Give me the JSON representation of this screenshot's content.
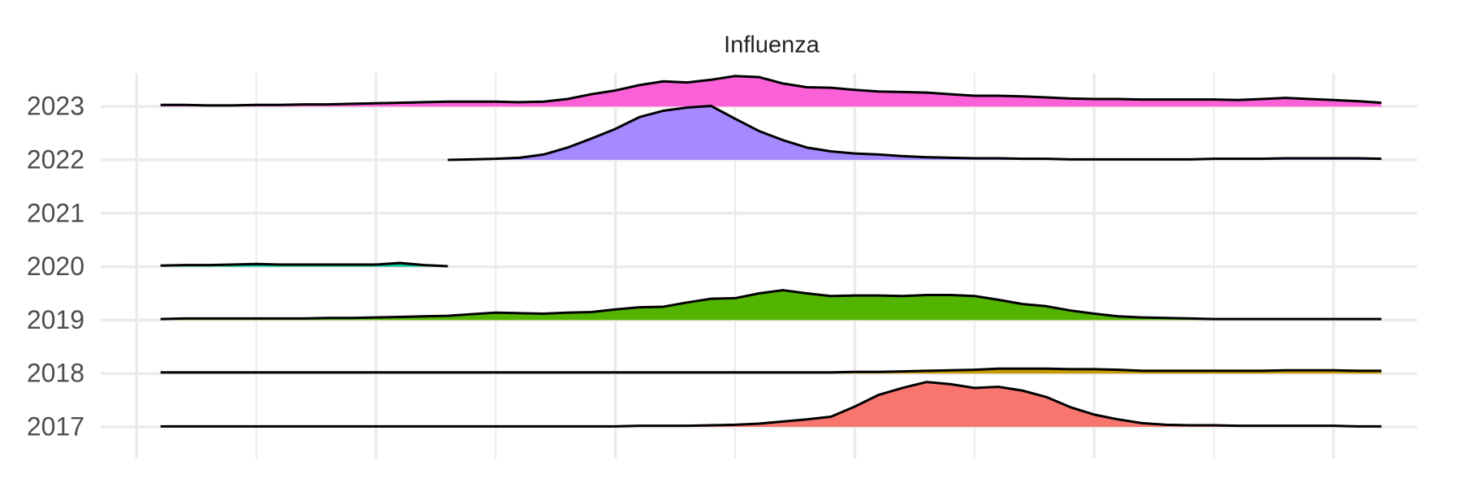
{
  "chart_data": {
    "type": "ridgeline",
    "title": "Influenza",
    "categories": [
      "2017",
      "2018",
      "2019",
      "2020",
      "2021",
      "2022",
      "2023"
    ],
    "x": [
      1,
      2,
      3,
      4,
      5,
      6,
      7,
      8,
      9,
      10,
      11,
      12,
      13,
      14,
      15,
      16,
      17,
      18,
      19,
      20,
      21,
      22,
      23,
      24,
      25,
      26,
      27,
      28,
      29,
      30,
      31,
      32,
      33,
      34,
      35,
      36,
      37,
      38,
      39,
      40,
      41,
      42,
      43,
      44,
      45,
      46,
      47,
      48,
      49,
      50,
      51,
      52
    ],
    "xlim": [
      -1.5,
      53.5
    ],
    "xticks": [
      0,
      5,
      10,
      15,
      20,
      25,
      30,
      35,
      40,
      45,
      50
    ],
    "grid": true,
    "series": [
      {
        "color": "#F8766D",
        "values": [
          0.01,
          0.01,
          0.01,
          0.01,
          0.01,
          0.01,
          0.01,
          0.01,
          0.01,
          0.01,
          0.01,
          0.01,
          0.01,
          0.01,
          0.01,
          0.01,
          0.01,
          0.01,
          0.01,
          0.01,
          0.02,
          0.02,
          0.02,
          0.03,
          0.04,
          0.06,
          0.1,
          0.14,
          0.19,
          0.38,
          0.6,
          0.73,
          0.84,
          0.8,
          0.73,
          0.75,
          0.68,
          0.56,
          0.37,
          0.23,
          0.14,
          0.07,
          0.04,
          0.03,
          0.03,
          0.02,
          0.02,
          0.02,
          0.02,
          0.02,
          0.01,
          0.01
        ]
      },
      {
        "color": "#C49A00",
        "values": [
          0.02,
          0.02,
          0.02,
          0.02,
          0.02,
          0.02,
          0.02,
          0.02,
          0.02,
          0.02,
          0.02,
          0.02,
          0.02,
          0.02,
          0.02,
          0.02,
          0.02,
          0.02,
          0.02,
          0.02,
          0.02,
          0.02,
          0.02,
          0.02,
          0.02,
          0.02,
          0.02,
          0.02,
          0.02,
          0.03,
          0.03,
          0.04,
          0.05,
          0.06,
          0.07,
          0.09,
          0.09,
          0.09,
          0.08,
          0.08,
          0.07,
          0.05,
          0.05,
          0.05,
          0.05,
          0.05,
          0.05,
          0.06,
          0.06,
          0.06,
          0.05,
          0.05
        ]
      },
      {
        "color": "#53B400",
        "values": [
          0.02,
          0.03,
          0.03,
          0.03,
          0.03,
          0.03,
          0.03,
          0.04,
          0.04,
          0.05,
          0.06,
          0.07,
          0.08,
          0.11,
          0.14,
          0.13,
          0.12,
          0.14,
          0.15,
          0.2,
          0.24,
          0.25,
          0.33,
          0.4,
          0.41,
          0.5,
          0.56,
          0.5,
          0.45,
          0.46,
          0.46,
          0.45,
          0.47,
          0.47,
          0.45,
          0.38,
          0.3,
          0.26,
          0.18,
          0.12,
          0.07,
          0.05,
          0.04,
          0.03,
          0.02,
          0.02,
          0.02,
          0.02,
          0.02,
          0.02,
          0.02,
          0.02
        ]
      },
      {
        "color": "#00C094",
        "values": [
          0.02,
          0.03,
          0.03,
          0.04,
          0.05,
          0.04,
          0.04,
          0.04,
          0.04,
          0.04,
          0.07,
          0.03,
          0.01,
          null,
          null,
          null,
          null,
          null,
          null,
          null,
          null,
          null,
          null,
          null,
          null,
          null,
          null,
          null,
          null,
          null,
          null,
          null,
          null,
          null,
          null,
          null,
          null,
          null,
          null,
          null,
          null,
          null,
          null,
          null,
          null,
          null,
          null,
          null,
          null,
          null,
          null,
          null
        ]
      },
      {
        "color": "#00B6EB",
        "values": [
          null,
          null,
          null,
          null,
          null,
          null,
          null,
          null,
          null,
          null,
          null,
          null,
          null,
          null,
          null,
          null,
          null,
          null,
          null,
          null,
          null,
          null,
          null,
          null,
          null,
          null,
          null,
          null,
          null,
          null,
          null,
          null,
          null,
          null,
          null,
          null,
          null,
          null,
          null,
          null,
          null,
          null,
          null,
          null,
          null,
          null,
          null,
          null,
          null,
          null,
          null,
          null
        ]
      },
      {
        "color": "#A58AFF",
        "values": [
          null,
          null,
          null,
          null,
          null,
          null,
          null,
          null,
          null,
          null,
          null,
          null,
          0.0,
          0.01,
          0.02,
          0.04,
          0.1,
          0.23,
          0.4,
          0.58,
          0.8,
          0.92,
          0.98,
          1.01,
          0.77,
          0.54,
          0.37,
          0.23,
          0.16,
          0.12,
          0.1,
          0.07,
          0.05,
          0.04,
          0.03,
          0.03,
          0.02,
          0.02,
          0.01,
          0.01,
          0.01,
          0.01,
          0.01,
          0.01,
          0.02,
          0.02,
          0.02,
          0.03,
          0.03,
          0.03,
          0.03,
          0.02
        ]
      },
      {
        "color": "#FB61D7",
        "values": [
          0.03,
          0.03,
          0.02,
          0.02,
          0.03,
          0.03,
          0.04,
          0.04,
          0.05,
          0.06,
          0.07,
          0.08,
          0.09,
          0.09,
          0.09,
          0.08,
          0.09,
          0.14,
          0.23,
          0.3,
          0.4,
          0.47,
          0.45,
          0.5,
          0.57,
          0.55,
          0.43,
          0.36,
          0.35,
          0.31,
          0.28,
          0.27,
          0.26,
          0.23,
          0.2,
          0.2,
          0.19,
          0.17,
          0.15,
          0.14,
          0.14,
          0.13,
          0.13,
          0.13,
          0.13,
          0.12,
          0.14,
          0.16,
          0.14,
          0.12,
          0.1,
          0.07
        ]
      }
    ]
  }
}
